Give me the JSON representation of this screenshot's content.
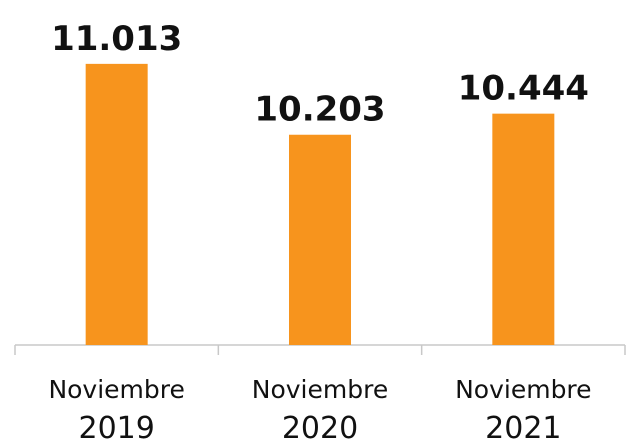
{
  "chart_data": {
    "type": "bar",
    "categories": [
      "Noviembre 2019",
      "Noviembre 2020",
      "Noviembre 2021"
    ],
    "values": [
      11013,
      10203,
      10444
    ],
    "value_labels": [
      "11.013",
      "10.203",
      "10.444"
    ],
    "color": "#f7941d",
    "ylim": [
      7800,
      11400
    ]
  }
}
